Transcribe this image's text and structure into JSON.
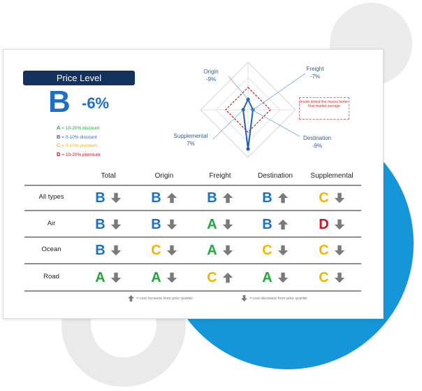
{
  "price_level": {
    "title": "Price Level",
    "grade": "B",
    "change": "-6%"
  },
  "legend": [
    {
      "letter": "A",
      "text": " = 10-20% discount",
      "color": "#1faa3c"
    },
    {
      "letter": "B",
      "text": " = 0-10% discount",
      "color": "#1e6fc8"
    },
    {
      "letter": "C",
      "text": " = 0-10% premium",
      "color": "#f3b600"
    },
    {
      "letter": "D",
      "text": " = 10-20% premium",
      "color": "#d1111c"
    }
  ],
  "radar": {
    "origin": {
      "name": "Origin",
      "value": "-9%"
    },
    "freight": {
      "name": "Freight",
      "value": "-7%"
    },
    "destination": {
      "name": "Destination",
      "value": "-9%"
    },
    "supplemental": {
      "name": "Supplemental",
      "value": "7%"
    },
    "note": "Inside dotted line means better than market average"
  },
  "table": {
    "columns": [
      "Total",
      "Origin",
      "Freight",
      "Destination",
      "Supplemental"
    ],
    "rows": [
      {
        "label": "All types",
        "cells": [
          [
            "B",
            "down"
          ],
          [
            "B",
            "up"
          ],
          [
            "B",
            "up"
          ],
          [
            "B",
            "up"
          ],
          [
            "C",
            "down"
          ]
        ]
      },
      {
        "label": "Air",
        "cells": [
          [
            "B",
            "down"
          ],
          [
            "B",
            "down"
          ],
          [
            "A",
            "down"
          ],
          [
            "B",
            "up"
          ],
          [
            "D",
            "down"
          ]
        ]
      },
      {
        "label": "Ocean",
        "cells": [
          [
            "B",
            "down"
          ],
          [
            "C",
            "down"
          ],
          [
            "A",
            "down"
          ],
          [
            "C",
            "down"
          ],
          [
            "C",
            "down"
          ]
        ]
      },
      {
        "label": "Road",
        "cells": [
          [
            "A",
            "down"
          ],
          [
            "A",
            "down"
          ],
          [
            "C",
            "up"
          ],
          [
            "A",
            "down"
          ],
          [
            "C",
            "down"
          ]
        ]
      }
    ]
  },
  "footnotes": {
    "up": "= cost increase from prior quarter",
    "down": "= cost decrease from prior quarter"
  },
  "colors": {
    "A": "#1faa3c",
    "B": "#1e6fc8",
    "C": "#f3b600",
    "D": "#d1111c",
    "arrow": "#7a7a7a"
  }
}
